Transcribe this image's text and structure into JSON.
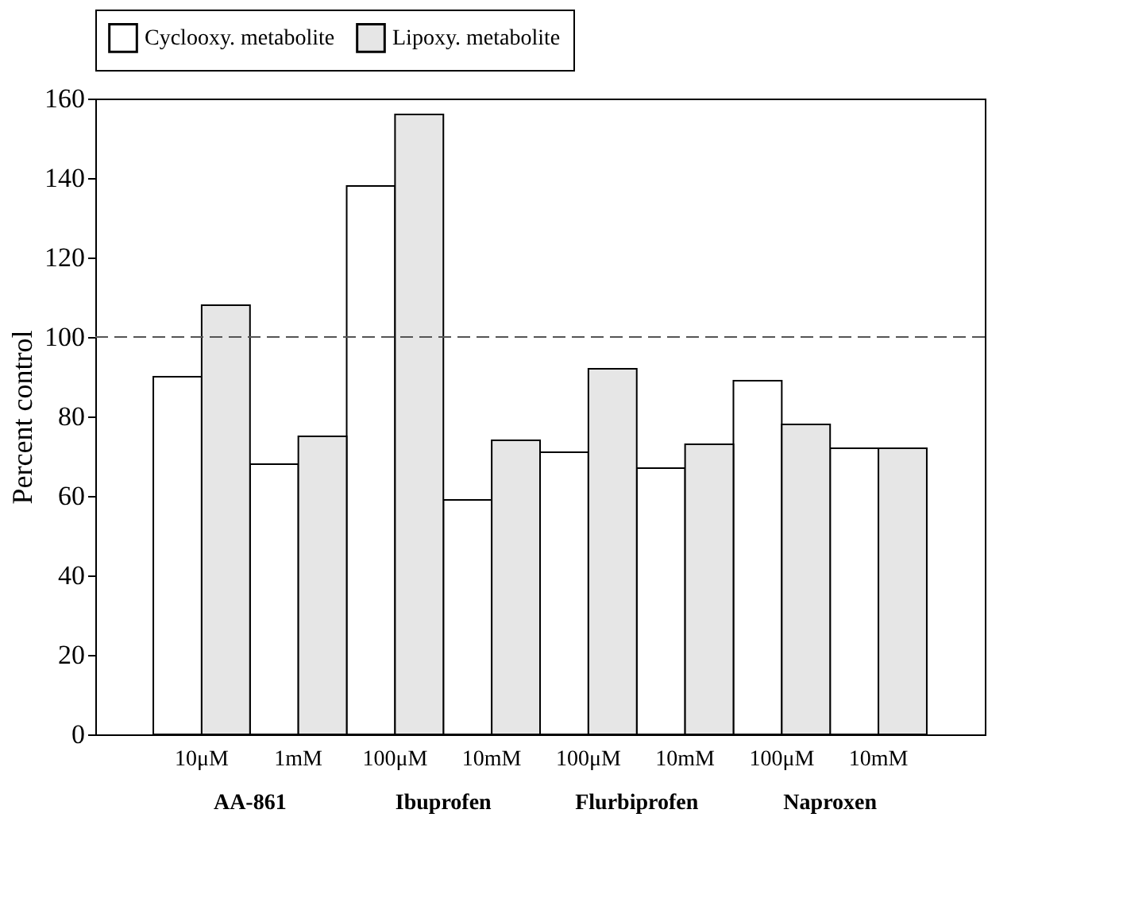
{
  "chart_data": {
    "type": "bar",
    "ylabel": "Percent control",
    "categories": [
      "10μM",
      "1mM",
      "100μM",
      "10mM",
      "100μM",
      "10mM",
      "100μM",
      "10mM"
    ],
    "series": [
      {
        "name": "Cyclooxy. metabolite",
        "color": "#ffffff",
        "values": [
          90,
          68,
          138,
          59,
          71,
          67,
          89,
          72
        ]
      },
      {
        "name": "Lipoxy. metabolite",
        "color": "#e6e6e6",
        "values": [
          108,
          75,
          156,
          74,
          92,
          73,
          78,
          72
        ]
      }
    ],
    "annotations": [
      "AA-861",
      "Ibuprofen",
      "Flurbiprofen",
      "Naproxen"
    ],
    "ylim": [
      0,
      160
    ],
    "yticks": [
      0,
      20,
      40,
      60,
      80,
      100,
      120,
      140,
      160
    ],
    "ref_lines": [
      {
        "axis": "y",
        "value": 100,
        "color": "#555555",
        "line_style": "dashed"
      }
    ],
    "legend": "top",
    "grid": false
  }
}
